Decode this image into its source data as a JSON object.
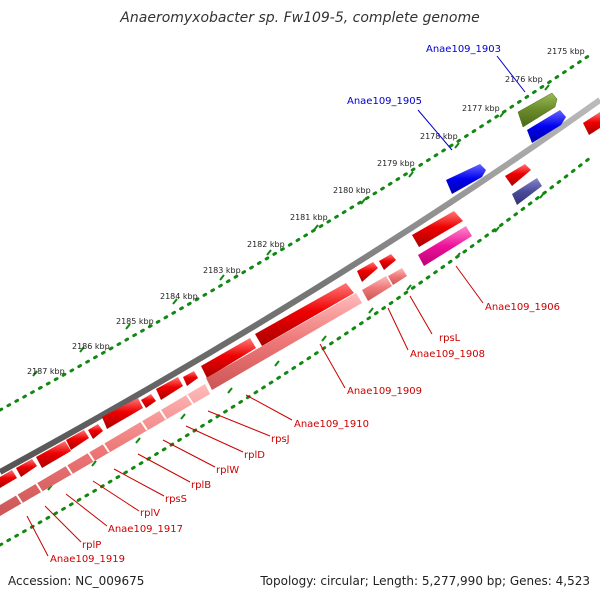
{
  "title": "Anaeromyxobacter sp. Fw109-5, complete genome",
  "footer": {
    "accession": "Accession: NC_009675",
    "summary": "Topology: circular; Length: 5,277,990 bp; Genes: 4,523"
  },
  "colors": {
    "backbone": "#777777",
    "ticks": "#118811",
    "tick_label": "#222222",
    "link_label_blue": "#0000cc",
    "link_label_red": "#cc0000"
  },
  "ticks": [
    "2175 kbp",
    "2176 kbp",
    "2177 kbp",
    "2178 kbp",
    "2179 kbp",
    "2180 kbp",
    "2181 kbp",
    "2182 kbp",
    "2183 kbp",
    "2184 kbp",
    "2185 kbp",
    "2186 kbp",
    "2187 kbp"
  ],
  "gene_labels": [
    {
      "text": "Anae109_1903",
      "color": "blue"
    },
    {
      "text": "Anae109_1905",
      "color": "blue"
    },
    {
      "text": "Anae109_1906",
      "color": "red"
    },
    {
      "text": "rpsL",
      "color": "red"
    },
    {
      "text": "Anae109_1908",
      "color": "red"
    },
    {
      "text": "Anae109_1909",
      "color": "red"
    },
    {
      "text": "Anae109_1910",
      "color": "red"
    },
    {
      "text": "rpsJ",
      "color": "red"
    },
    {
      "text": "rplD",
      "color": "red"
    },
    {
      "text": "rplW",
      "color": "red"
    },
    {
      "text": "rplB",
      "color": "red"
    },
    {
      "text": "rpsS",
      "color": "red"
    },
    {
      "text": "rplV",
      "color": "red"
    },
    {
      "text": "Anae109_1917",
      "color": "red"
    },
    {
      "text": "rplP",
      "color": "red"
    },
    {
      "text": "Anae109_1919",
      "color": "red"
    }
  ]
}
